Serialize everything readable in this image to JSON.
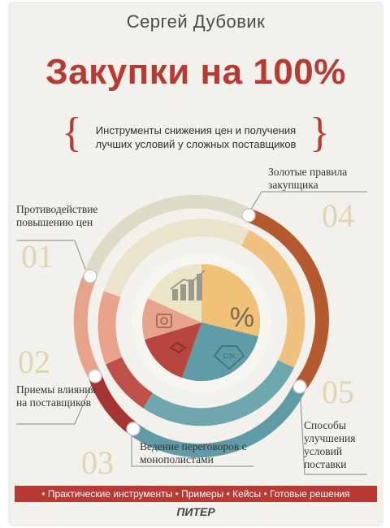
{
  "author": "Сергей Дубовик",
  "title": "Закупки на 100%",
  "subtitle": "Инструменты снижения цен и получения лучших условий у сложных поставщиков",
  "sections": [
    {
      "number": "01",
      "label": "Противодействие повышению цен"
    },
    {
      "number": "02",
      "label": "Приемы влияния на поставщиков"
    },
    {
      "number": "03",
      "label": "Ведение переговоров с монополистами"
    },
    {
      "number": "04",
      "label": "Золотые правила закупщика"
    },
    {
      "number": "05",
      "label": "Способы улучшения условий поставки"
    }
  ],
  "center_symbol": "%",
  "badge_text": "СЗК",
  "footer": "• Практические инструменты • Примеры • Кейсы • Готовые решения",
  "publisher": "ПИТЕР",
  "colors": {
    "accent": "#b83a32",
    "ring_outer": "#b45a2e",
    "ring_inner": "#e8b57a",
    "teal": "#5f9ca6",
    "beige": "#efe6c9",
    "number": "#e1d4b5"
  }
}
